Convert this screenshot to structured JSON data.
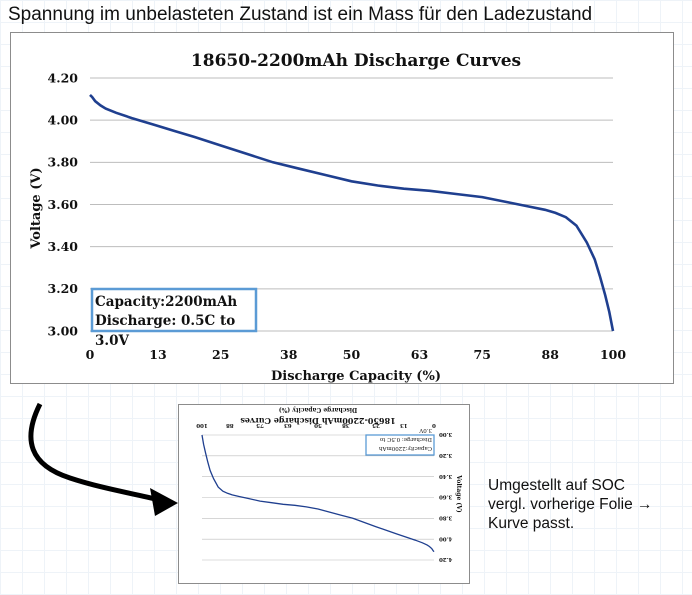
{
  "slide": {
    "title": "Spannung im unbelasteten Zustand ist ein Mass für den Ladezustand",
    "note_lines": [
      "Umgestellt auf SOC",
      "vergl. vorherige Folie →",
      "Kurve passt."
    ],
    "colors": {
      "curve": "#1f3f8f",
      "box_border": "#5b9bd5",
      "arrow": "#000000"
    }
  },
  "chart_data": [
    {
      "type": "line",
      "title": "18650-2200mAh  Discharge Curves",
      "xlabel": "Discharge  Capacity (%)",
      "ylabel": "Voltage (V)",
      "xlim": [
        0,
        100
      ],
      "ylim": [
        3.0,
        4.2
      ],
      "xticks": [
        "0",
        "13",
        "25",
        "38",
        "50",
        "63",
        "75",
        "88",
        "100"
      ],
      "yticks": [
        "3.00",
        "3.20",
        "3.40",
        "3.60",
        "3.80",
        "4.00",
        "4.20"
      ],
      "grid": "horizontal",
      "annotation": [
        "Capacity:2200mAh",
        "Discharge: 0.5C to",
        "3.0V"
      ],
      "series": [
        {
          "x": [
            0,
            0.4,
            1,
            2,
            3,
            5,
            8,
            12,
            16,
            20,
            25,
            30,
            35,
            40,
            45,
            50,
            55,
            60,
            65,
            70,
            75,
            80,
            84,
            87,
            89,
            91,
            93,
            95,
            96.5,
            97.5,
            98.5,
            99.3,
            100
          ],
          "y": [
            4.12,
            4.11,
            4.09,
            4.07,
            4.055,
            4.035,
            4.01,
            3.98,
            3.95,
            3.92,
            3.88,
            3.84,
            3.8,
            3.77,
            3.74,
            3.71,
            3.69,
            3.675,
            3.665,
            3.65,
            3.635,
            3.61,
            3.59,
            3.575,
            3.56,
            3.54,
            3.5,
            3.42,
            3.34,
            3.26,
            3.17,
            3.09,
            3.0
          ]
        }
      ]
    },
    {
      "type": "line",
      "title": "18650-2200mAh  Discharge Curves",
      "xlabel": "Discharge  Capacity (%)",
      "ylabel": "Voltage (V)",
      "xlim": [
        0,
        100
      ],
      "ylim": [
        3.0,
        4.2
      ],
      "mirrored": true,
      "xticks": [
        "0",
        "13",
        "25",
        "38",
        "50",
        "63",
        "75",
        "88",
        "100"
      ],
      "yticks": [
        "3.00",
        "3.20",
        "3.40",
        "3.60",
        "3.80",
        "4.00",
        "4.20"
      ],
      "grid": "horizontal",
      "annotation": [
        "Capacity:2200mAh",
        "Discharge: 0.5C to",
        "3.0V"
      ],
      "series": [
        {
          "x": [
            0,
            0.4,
            1,
            2,
            3,
            5,
            8,
            12,
            16,
            20,
            25,
            30,
            35,
            40,
            45,
            50,
            55,
            60,
            65,
            70,
            75,
            80,
            84,
            87,
            89,
            91,
            93,
            95,
            96.5,
            97.5,
            98.5,
            99.3,
            100
          ],
          "y": [
            4.12,
            4.11,
            4.09,
            4.07,
            4.055,
            4.035,
            4.01,
            3.98,
            3.95,
            3.92,
            3.88,
            3.84,
            3.8,
            3.77,
            3.74,
            3.71,
            3.69,
            3.675,
            3.665,
            3.65,
            3.635,
            3.61,
            3.59,
            3.575,
            3.56,
            3.54,
            3.5,
            3.42,
            3.34,
            3.26,
            3.17,
            3.09,
            3.0
          ]
        }
      ]
    }
  ]
}
